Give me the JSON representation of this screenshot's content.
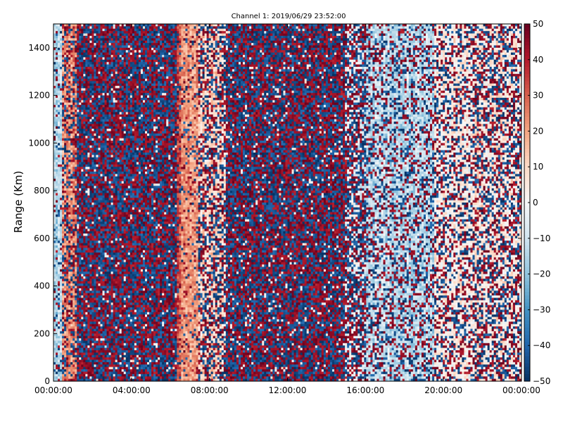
{
  "chart_data": {
    "type": "heatmap",
    "title": "Channel 1: 2019/06/29 23:52:00",
    "xlabel": "",
    "ylabel": "Range (Km)",
    "x_ticks": [
      "00:00:00",
      "04:00:00",
      "08:00:00",
      "12:00:00",
      "16:00:00",
      "20:00:00",
      "00:00:00"
    ],
    "xlim_hours": [
      0,
      24
    ],
    "ylim": [
      0,
      1500
    ],
    "y_ticks": [
      0,
      200,
      400,
      600,
      800,
      1000,
      1200,
      1400
    ],
    "colorbar": {
      "min": -50,
      "max": 50,
      "ticks": [
        -50,
        -40,
        -30,
        -20,
        -10,
        0,
        10,
        20,
        30,
        40,
        50
      ],
      "colormap": "RdBu_r",
      "colors": [
        "#053061",
        "#2166ac",
        "#4393c3",
        "#92c5de",
        "#d1e5f0",
        "#f7f7f7",
        "#fddbc7",
        "#f4a582",
        "#d6604d",
        "#b2182b",
        "#67001f"
      ]
    },
    "bands": [
      {
        "from_hour": 0.0,
        "to_hour": 0.4,
        "mean": -15,
        "noise": 0.15
      },
      {
        "from_hour": 0.4,
        "to_hour": 1.2,
        "mean": 22,
        "noise": 0.45
      },
      {
        "from_hour": 1.2,
        "to_hour": 6.3,
        "mean": 0,
        "noise": 0.95
      },
      {
        "from_hour": 6.3,
        "to_hour": 6.55,
        "mean": 33,
        "noise": 0.2
      },
      {
        "from_hour": 6.55,
        "to_hour": 7.4,
        "mean": 22,
        "noise": 0.15
      },
      {
        "from_hour": 7.4,
        "to_hour": 8.8,
        "mean": 10,
        "noise": 0.55
      },
      {
        "from_hour": 8.8,
        "to_hour": 15.0,
        "mean": 0,
        "noise": 0.95
      },
      {
        "from_hour": 15.0,
        "to_hour": 16.0,
        "mean": -5,
        "noise": 0.7
      },
      {
        "from_hour": 16.0,
        "to_hour": 19.5,
        "mean": -12,
        "noise": 0.4
      },
      {
        "from_hour": 19.5,
        "to_hour": 21.5,
        "mean": 3,
        "noise": 0.45
      },
      {
        "from_hour": 21.5,
        "to_hour": 24.0,
        "mean": 5,
        "noise": 0.55
      }
    ]
  }
}
